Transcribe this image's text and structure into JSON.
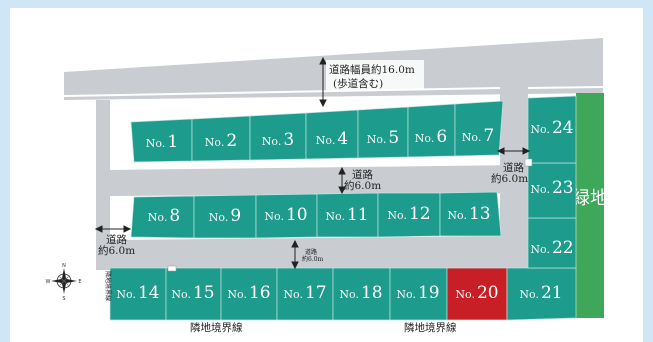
{
  "lots": [
    {
      "id": "1",
      "prefix": "No.",
      "num": "1",
      "highlight": false
    },
    {
      "id": "2",
      "prefix": "No.",
      "num": "2",
      "highlight": false
    },
    {
      "id": "3",
      "prefix": "No.",
      "num": "3",
      "highlight": false
    },
    {
      "id": "4",
      "prefix": "No.",
      "num": "4",
      "highlight": false
    },
    {
      "id": "5",
      "prefix": "No.",
      "num": "5",
      "highlight": false
    },
    {
      "id": "6",
      "prefix": "No.",
      "num": "6",
      "highlight": false
    },
    {
      "id": "7",
      "prefix": "No.",
      "num": "7",
      "highlight": false
    },
    {
      "id": "8",
      "prefix": "No.",
      "num": "8",
      "highlight": false
    },
    {
      "id": "9",
      "prefix": "No.",
      "num": "9",
      "highlight": false
    },
    {
      "id": "10",
      "prefix": "No.",
      "num": "10",
      "highlight": false
    },
    {
      "id": "11",
      "prefix": "No.",
      "num": "11",
      "highlight": false
    },
    {
      "id": "12",
      "prefix": "No.",
      "num": "12",
      "highlight": false
    },
    {
      "id": "13",
      "prefix": "No.",
      "num": "13",
      "highlight": false
    },
    {
      "id": "14",
      "prefix": "No.",
      "num": "14",
      "highlight": false
    },
    {
      "id": "15",
      "prefix": "No.",
      "num": "15",
      "highlight": false
    },
    {
      "id": "16",
      "prefix": "No.",
      "num": "16",
      "highlight": false
    },
    {
      "id": "17",
      "prefix": "No.",
      "num": "17",
      "highlight": false
    },
    {
      "id": "18",
      "prefix": "No.",
      "num": "18",
      "highlight": false
    },
    {
      "id": "19",
      "prefix": "No.",
      "num": "19",
      "highlight": false
    },
    {
      "id": "20",
      "prefix": "No.",
      "num": "20",
      "highlight": true
    },
    {
      "id": "21",
      "prefix": "No.",
      "num": "21",
      "highlight": false
    },
    {
      "id": "22",
      "prefix": "No.",
      "num": "22",
      "highlight": false
    },
    {
      "id": "23",
      "prefix": "No.",
      "num": "23",
      "highlight": false
    },
    {
      "id": "24",
      "prefix": "No.",
      "num": "24",
      "highlight": false
    }
  ],
  "labels": {
    "main_road_line1": "道路幅員約16.0m",
    "main_road_line2": "(歩道含む)",
    "road_center_1": "道路",
    "road_center_2": "約6.0m",
    "road_right_1": "道路",
    "road_right_2": "約6.0m",
    "road_left_1": "道路",
    "road_left_2": "約6.0m",
    "road_small_1": "道路",
    "road_small_2": "約6.0m",
    "boundary_left": "隣地境界線",
    "boundary_bottom_1": "隣地境界線",
    "boundary_bottom_2": "隣地境界線",
    "green_area": "緑地",
    "compass_n": "N",
    "compass_s": "S",
    "compass_e": "E",
    "compass_w": "W"
  },
  "colors": {
    "background": "#cfe6f7",
    "canvas": "#ffffff",
    "road": "#c9ccd0",
    "lot": "#1d9b8c",
    "lot_highlight": "#c81e25",
    "lot_border": "#bfe5df",
    "green": "#3fa75a"
  }
}
